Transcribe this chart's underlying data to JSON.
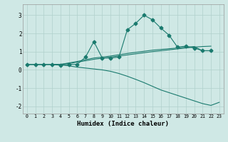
{
  "xlabel": "Humidex (Indice chaleur)",
  "background_color": "#cfe8e5",
  "grid_color": "#b0d0cc",
  "line_color": "#1a7a6e",
  "xlim": [
    -0.5,
    23.5
  ],
  "ylim": [
    -2.4,
    3.6
  ],
  "xticks": [
    0,
    1,
    2,
    3,
    4,
    5,
    6,
    7,
    8,
    9,
    10,
    11,
    12,
    13,
    14,
    15,
    16,
    17,
    18,
    19,
    20,
    21,
    22,
    23
  ],
  "yticks": [
    -2,
    -1,
    0,
    1,
    2,
    3
  ],
  "line1_x": [
    0,
    1,
    2,
    3,
    4,
    5,
    6,
    7,
    8,
    9,
    10,
    11,
    12,
    13,
    14,
    15,
    16,
    17,
    18,
    19,
    20,
    21,
    22
  ],
  "line1_y": [
    0.3,
    0.3,
    0.3,
    0.3,
    0.25,
    0.3,
    0.3,
    0.7,
    1.55,
    0.65,
    0.65,
    0.7,
    2.2,
    2.55,
    3.0,
    2.75,
    2.3,
    1.9,
    1.25,
    1.3,
    1.2,
    1.05,
    1.05
  ],
  "line2_x": [
    0,
    1,
    2,
    3,
    4,
    5,
    6,
    7,
    8,
    9,
    10,
    11,
    12,
    13,
    14,
    15,
    16,
    17,
    18,
    19,
    20,
    21,
    22
  ],
  "line2_y": [
    0.3,
    0.3,
    0.3,
    0.3,
    0.3,
    0.35,
    0.42,
    0.5,
    0.58,
    0.64,
    0.7,
    0.76,
    0.82,
    0.88,
    0.94,
    1.0,
    1.05,
    1.1,
    1.15,
    1.2,
    1.25,
    1.28,
    1.3
  ],
  "line3_x": [
    0,
    1,
    2,
    3,
    4,
    5,
    6,
    7,
    8,
    9,
    10,
    11,
    12,
    13,
    14,
    15,
    16,
    17,
    18,
    19,
    20,
    21,
    22,
    23
  ],
  "line3_y": [
    0.3,
    0.3,
    0.3,
    0.3,
    0.28,
    0.22,
    0.15,
    0.1,
    0.05,
    0.0,
    -0.08,
    -0.2,
    -0.35,
    -0.52,
    -0.7,
    -0.9,
    -1.1,
    -1.25,
    -1.4,
    -1.55,
    -1.7,
    -1.85,
    -1.95,
    -1.78
  ],
  "line4_x": [
    0,
    1,
    2,
    3,
    4,
    5,
    6,
    7,
    8,
    9,
    10,
    11,
    12,
    13,
    14,
    15,
    16,
    17,
    18,
    19,
    20,
    21,
    22
  ],
  "line4_y": [
    0.3,
    0.3,
    0.3,
    0.3,
    0.3,
    0.38,
    0.46,
    0.56,
    0.65,
    0.7,
    0.76,
    0.83,
    0.9,
    0.96,
    1.02,
    1.08,
    1.12,
    1.16,
    1.2,
    1.24,
    1.28,
    1.05,
    1.05
  ]
}
